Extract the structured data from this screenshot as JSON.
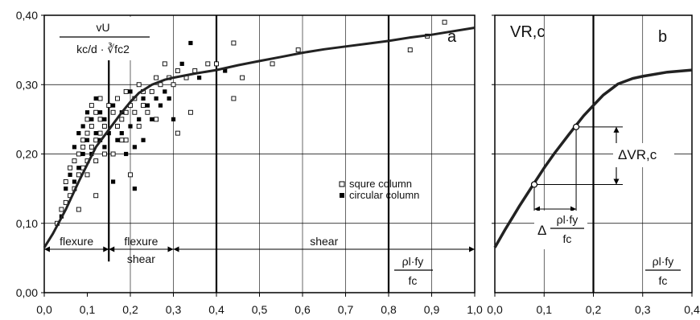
{
  "chart_data": [
    {
      "panel": "a",
      "type": "scatter",
      "panel_label": "a",
      "ylabel": {
        "num": "vU",
        "den": "kc/d · ∛fc2"
      },
      "xlabel": {
        "num": "ρl·fy",
        "den": "fc"
      },
      "xlim": [
        0,
        1.0
      ],
      "ylim": [
        0,
        0.4
      ],
      "x_ticks": [
        "0,0",
        "0,1",
        "0,2",
        "0,3",
        "0,4",
        "0,5",
        "0,6",
        "0,7",
        "0,8",
        "0,9",
        "1,0"
      ],
      "y_ticks": [
        "0,00",
        "0,10",
        "0,20",
        "0,30",
        "0,40"
      ],
      "grid": true,
      "legend": {
        "position": "right-middle",
        "entries": [
          {
            "marker": "open-square",
            "label": "squre column"
          },
          {
            "marker": "filled-square",
            "label": "circular column"
          }
        ]
      },
      "vertical_lines": [
        0.15,
        0.4,
        0.8
      ],
      "zones": [
        {
          "label": "flexure",
          "from": 0.0,
          "to": 0.15
        },
        {
          "label": "flexure",
          "from": 0.15,
          "to": 0.3
        },
        {
          "label": "shear",
          "from": 0.15,
          "to": 0.3
        },
        {
          "label": "shear",
          "from": 0.3,
          "to": 1.0
        }
      ],
      "curve": [
        [
          0.0,
          0.065
        ],
        [
          0.02,
          0.085
        ],
        [
          0.05,
          0.12
        ],
        [
          0.08,
          0.16
        ],
        [
          0.1,
          0.185
        ],
        [
          0.12,
          0.21
        ],
        [
          0.15,
          0.235
        ],
        [
          0.18,
          0.26
        ],
        [
          0.2,
          0.275
        ],
        [
          0.22,
          0.288
        ],
        [
          0.25,
          0.3
        ],
        [
          0.28,
          0.307
        ],
        [
          0.3,
          0.31
        ],
        [
          0.35,
          0.316
        ],
        [
          0.4,
          0.321
        ],
        [
          0.45,
          0.328
        ],
        [
          0.5,
          0.334
        ],
        [
          0.55,
          0.34
        ],
        [
          0.6,
          0.346
        ],
        [
          0.65,
          0.351
        ],
        [
          0.7,
          0.355
        ],
        [
          0.75,
          0.359
        ],
        [
          0.8,
          0.363
        ],
        [
          0.85,
          0.368
        ],
        [
          0.9,
          0.372
        ],
        [
          0.95,
          0.377
        ],
        [
          1.0,
          0.382
        ]
      ],
      "series": [
        {
          "name": "squre column",
          "marker": "open-square",
          "points": [
            [
              0.03,
              0.1
            ],
            [
              0.04,
              0.12
            ],
            [
              0.05,
              0.13
            ],
            [
              0.05,
              0.16
            ],
            [
              0.06,
              0.18
            ],
            [
              0.06,
              0.14
            ],
            [
              0.07,
              0.19
            ],
            [
              0.07,
              0.15
            ],
            [
              0.08,
              0.17
            ],
            [
              0.08,
              0.2
            ],
            [
              0.08,
              0.12
            ],
            [
              0.09,
              0.21
            ],
            [
              0.09,
              0.18
            ],
            [
              0.09,
              0.22
            ],
            [
              0.1,
              0.19
            ],
            [
              0.1,
              0.23
            ],
            [
              0.1,
              0.25
            ],
            [
              0.1,
              0.17
            ],
            [
              0.11,
              0.24
            ],
            [
              0.11,
              0.21
            ],
            [
              0.11,
              0.27
            ],
            [
              0.12,
              0.22
            ],
            [
              0.12,
              0.26
            ],
            [
              0.12,
              0.19
            ],
            [
              0.12,
              0.14
            ],
            [
              0.13,
              0.25
            ],
            [
              0.13,
              0.28
            ],
            [
              0.13,
              0.23
            ],
            [
              0.14,
              0.24
            ],
            [
              0.14,
              0.2
            ],
            [
              0.15,
              0.27
            ],
            [
              0.16,
              0.26
            ],
            [
              0.17,
              0.24
            ],
            [
              0.17,
              0.28
            ],
            [
              0.18,
              0.25
            ],
            [
              0.18,
              0.22
            ],
            [
              0.19,
              0.26
            ],
            [
              0.19,
              0.29
            ],
            [
              0.2,
              0.27
            ],
            [
              0.2,
              0.17
            ],
            [
              0.21,
              0.26
            ],
            [
              0.21,
              0.28
            ],
            [
              0.22,
              0.24
            ],
            [
              0.22,
              0.3
            ],
            [
              0.23,
              0.27
            ],
            [
              0.23,
              0.29
            ],
            [
              0.24,
              0.26
            ],
            [
              0.25,
              0.29
            ],
            [
              0.26,
              0.31
            ],
            [
              0.27,
              0.3
            ],
            [
              0.28,
              0.33
            ],
            [
              0.29,
              0.31
            ],
            [
              0.3,
              0.3
            ],
            [
              0.31,
              0.32
            ],
            [
              0.33,
              0.31
            ],
            [
              0.34,
              0.26
            ],
            [
              0.35,
              0.32
            ],
            [
              0.38,
              0.33
            ],
            [
              0.4,
              0.33
            ],
            [
              0.44,
              0.36
            ],
            [
              0.44,
              0.28
            ],
            [
              0.46,
              0.31
            ],
            [
              0.53,
              0.33
            ],
            [
              0.59,
              0.35
            ],
            [
              0.85,
              0.35
            ],
            [
              0.89,
              0.37
            ],
            [
              0.93,
              0.39
            ],
            [
              0.2,
              0.36
            ],
            [
              0.19,
              0.22
            ],
            [
              0.16,
              0.2
            ],
            [
              0.31,
              0.23
            ],
            [
              0.26,
              0.25
            ]
          ]
        },
        {
          "name": "circular column",
          "marker": "filled-square",
          "points": [
            [
              0.04,
              0.11
            ],
            [
              0.05,
              0.15
            ],
            [
              0.06,
              0.17
            ],
            [
              0.07,
              0.16
            ],
            [
              0.07,
              0.21
            ],
            [
              0.08,
              0.18
            ],
            [
              0.08,
              0.23
            ],
            [
              0.09,
              0.2
            ],
            [
              0.09,
              0.24
            ],
            [
              0.1,
              0.22
            ],
            [
              0.1,
              0.26
            ],
            [
              0.11,
              0.2
            ],
            [
              0.11,
              0.25
            ],
            [
              0.12,
              0.23
            ],
            [
              0.12,
              0.28
            ],
            [
              0.13,
              0.22
            ],
            [
              0.13,
              0.26
            ],
            [
              0.14,
              0.25
            ],
            [
              0.14,
              0.21
            ],
            [
              0.15,
              0.23
            ],
            [
              0.16,
              0.27
            ],
            [
              0.17,
              0.22
            ],
            [
              0.18,
              0.23
            ],
            [
              0.18,
              0.26
            ],
            [
              0.19,
              0.2
            ],
            [
              0.2,
              0.24
            ],
            [
              0.2,
              0.29
            ],
            [
              0.21,
              0.21
            ],
            [
              0.22,
              0.25
            ],
            [
              0.23,
              0.22
            ],
            [
              0.23,
              0.28
            ],
            [
              0.24,
              0.27
            ],
            [
              0.25,
              0.25
            ],
            [
              0.26,
              0.28
            ],
            [
              0.27,
              0.27
            ],
            [
              0.28,
              0.29
            ],
            [
              0.29,
              0.28
            ],
            [
              0.3,
              0.25
            ],
            [
              0.32,
              0.33
            ],
            [
              0.34,
              0.36
            ],
            [
              0.36,
              0.31
            ],
            [
              0.42,
              0.32
            ],
            [
              0.16,
              0.16
            ],
            [
              0.21,
              0.15
            ]
          ]
        }
      ]
    },
    {
      "panel": "b",
      "type": "line",
      "panel_label": "b",
      "ylabel": "VR,c",
      "xlabel": {
        "num": "ρl·fy",
        "den": "fc"
      },
      "xlim": [
        0,
        0.4
      ],
      "ylim": [
        0,
        0.4
      ],
      "x_ticks": [
        "0,0",
        "0,1",
        "0,2",
        "0,3",
        "0,4"
      ],
      "grid": true,
      "vertical_lines": [
        0.2
      ],
      "curve": [
        [
          0.0,
          0.065
        ],
        [
          0.02,
          0.09
        ],
        [
          0.05,
          0.125
        ],
        [
          0.08,
          0.158
        ],
        [
          0.1,
          0.18
        ],
        [
          0.12,
          0.2
        ],
        [
          0.15,
          0.228
        ],
        [
          0.18,
          0.255
        ],
        [
          0.2,
          0.27
        ],
        [
          0.22,
          0.285
        ],
        [
          0.25,
          0.301
        ],
        [
          0.28,
          0.309
        ],
        [
          0.3,
          0.312
        ],
        [
          0.35,
          0.318
        ],
        [
          0.4,
          0.321
        ]
      ],
      "highlight_points": [
        [
          0.08,
          0.156
        ],
        [
          0.165,
          0.239
        ]
      ],
      "annotations": {
        "delta_v": "ΔVR,c",
        "delta_x": {
          "prefix": "Δ",
          "num": "ρl·fy",
          "den": "fc"
        }
      }
    }
  ]
}
